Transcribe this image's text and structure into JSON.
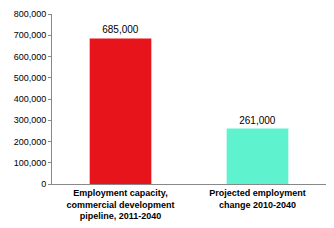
{
  "chart_data": {
    "type": "bar",
    "categories": [
      "Employment capacity,\ncommercial development\npipeline, 2011-2040",
      "Projected employment\nchange 2010-2040"
    ],
    "values": [
      685000,
      261000
    ],
    "value_labels": [
      "685,000",
      "261,000"
    ],
    "colors": [
      "#e8141b",
      "#5ff2cf"
    ],
    "data_labels": true,
    "grid": false,
    "ylim": [
      0,
      800000
    ],
    "yticks": [
      0,
      {
        "value": 100000,
        "label": "100,000"
      },
      {
        "value": 200000,
        "label": "200,000"
      },
      {
        "value": 300000,
        "label": "300,000"
      },
      {
        "value": 400000,
        "label": "400,000"
      },
      {
        "value": 500000,
        "label": "500,000"
      },
      {
        "value": 600000,
        "label": "600,000"
      },
      {
        "value": 700000,
        "label": "700,000"
      },
      {
        "value": 800000,
        "label": "800,000"
      }
    ]
  }
}
